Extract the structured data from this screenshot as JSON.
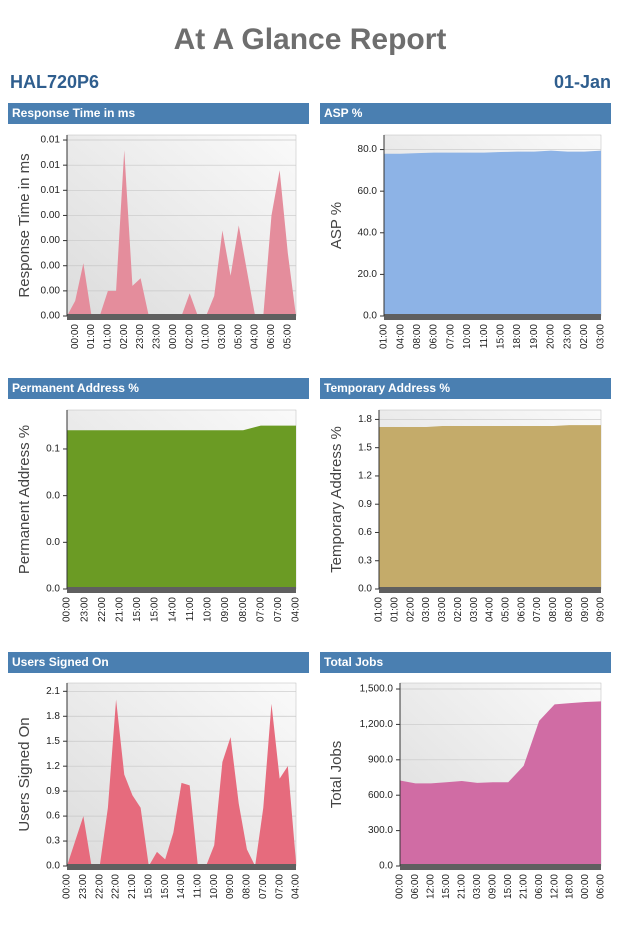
{
  "header": {
    "title": "At A Glance Report",
    "host": "HAL720P6",
    "date": "01-Jan"
  },
  "chart_data": [
    {
      "type": "area",
      "title": "Response Time in ms",
      "ylabel": "Response Time in ms",
      "color": "#e48d9c",
      "categories": [
        null,
        "00:00",
        null,
        "01:00",
        null,
        "01:00",
        null,
        "02:00",
        null,
        "23:00",
        null,
        "23:00",
        null,
        "00:00",
        null,
        "02:00",
        null,
        "01:00",
        null,
        "03:00",
        null,
        "05:00",
        null,
        "04:00",
        null,
        "06:00",
        null,
        "05:00",
        null
      ],
      "values": [
        0,
        0.0006,
        0.0021,
        0,
        0,
        0.001,
        0.001,
        0.0066,
        0.0012,
        0.0015,
        0,
        0,
        0,
        0,
        0,
        0.0009,
        0,
        0,
        0.0008,
        0.0034,
        0.0016,
        0.0036,
        0.0018,
        0,
        0,
        0.004,
        0.0058,
        0.0025,
        0
      ],
      "ylim": [
        0,
        0.0072
      ],
      "yticks": [
        {
          "value": 0,
          "label": "0.00"
        },
        {
          "value": 0.001,
          "label": "0.00"
        },
        {
          "value": 0.002,
          "label": "0.00"
        },
        {
          "value": 0.003,
          "label": "0.00"
        },
        {
          "value": 0.004,
          "label": "0.00"
        },
        {
          "value": 0.005,
          "label": "0.01"
        },
        {
          "value": 0.006,
          "label": "0.01"
        },
        {
          "value": 0.007,
          "label": "0.01"
        }
      ],
      "grid": true
    },
    {
      "type": "area",
      "title": "ASP %",
      "ylabel": "ASP %",
      "color": "#8db3e6",
      "categories": [
        "01:00",
        "04:00",
        "08:00",
        "06:00",
        "07:00",
        "10:00",
        "11:00",
        "15:00",
        "18:00",
        "19:00",
        "20:00",
        "23:00",
        "02:00",
        "03:00"
      ],
      "values": [
        78,
        78,
        78.3,
        78.5,
        78.5,
        78.5,
        78.5,
        78.8,
        79,
        79,
        79.5,
        79,
        79,
        79.5
      ],
      "ylim": [
        0,
        87
      ],
      "yticks": [
        {
          "value": 0,
          "label": "0.0"
        },
        {
          "value": 20,
          "label": "20.0"
        },
        {
          "value": 40,
          "label": "40.0"
        },
        {
          "value": 60,
          "label": "60.0"
        },
        {
          "value": 80,
          "label": "80.0"
        }
      ],
      "grid": true
    },
    {
      "type": "area",
      "title": "Permanent Address %",
      "ylabel": "Permanent Address %",
      "color": "#6b9b24",
      "categories": [
        "00:00",
        "23:00",
        "22:00",
        "21:00",
        "15:00",
        "15:00",
        "14:00",
        "11:00",
        "10:00",
        "09:00",
        "08:00",
        "07:00",
        "07:00",
        "04:00"
      ],
      "values": [
        0.068,
        0.068,
        0.068,
        0.068,
        0.068,
        0.068,
        0.068,
        0.068,
        0.068,
        0.068,
        0.068,
        0.07,
        0.07,
        0.07
      ],
      "ylim": [
        0,
        0.0767
      ],
      "yticks": [
        {
          "value": 0,
          "label": "0.0"
        },
        {
          "value": 0.02,
          "label": "0.0"
        },
        {
          "value": 0.04,
          "label": "0.0"
        },
        {
          "value": 0.06,
          "label": "0.1"
        }
      ],
      "grid": true
    },
    {
      "type": "area",
      "title": "Temporary Address %",
      "ylabel": "Temporary Address %",
      "color": "#c4ab6a",
      "categories": [
        "01:00",
        "01:00",
        "02:00",
        "03:00",
        "03:00",
        "02:00",
        "03:00",
        "04:00",
        "05:00",
        "06:00",
        "07:00",
        "08:00",
        "08:00",
        "09:00",
        "09:00"
      ],
      "values": [
        1.72,
        1.72,
        1.72,
        1.72,
        1.73,
        1.73,
        1.73,
        1.73,
        1.73,
        1.73,
        1.73,
        1.73,
        1.74,
        1.74,
        1.74
      ],
      "ylim": [
        0,
        1.9
      ],
      "yticks": [
        {
          "value": 0,
          "label": "0.0"
        },
        {
          "value": 0.3,
          "label": "0.3"
        },
        {
          "value": 0.6,
          "label": "0.6"
        },
        {
          "value": 0.9,
          "label": "0.9"
        },
        {
          "value": 1.2,
          "label": "1.2"
        },
        {
          "value": 1.5,
          "label": "1.5"
        },
        {
          "value": 1.8,
          "label": "1.8"
        }
      ],
      "grid": true
    },
    {
      "type": "area",
      "title": "Users Signed On",
      "ylabel": "Users Signed On",
      "color": "#e66b7d",
      "categories": [
        "00:00",
        null,
        "23:00",
        null,
        "22:00",
        null,
        "22:00",
        null,
        "21:00",
        null,
        "15:00",
        null,
        "15:00",
        null,
        "14:00",
        null,
        "11:00",
        null,
        "10:00",
        null,
        "09:00",
        null,
        "08:00",
        null,
        "07:00",
        null,
        "07:00",
        null,
        "04:00"
      ],
      "values": [
        0,
        0.3,
        0.6,
        0,
        0,
        0.7,
        2.0,
        1.1,
        0.85,
        0.7,
        0,
        0.17,
        0.08,
        0.4,
        1.0,
        0.97,
        0,
        0,
        0.25,
        1.25,
        1.55,
        0.75,
        0.2,
        0,
        0.7,
        1.95,
        1.05,
        1.2,
        0.05
      ],
      "ylim": [
        0,
        2.2
      ],
      "yticks": [
        {
          "value": 0,
          "label": "0.0"
        },
        {
          "value": 0.3,
          "label": "0.3"
        },
        {
          "value": 0.6,
          "label": "0.6"
        },
        {
          "value": 0.9,
          "label": "0.9"
        },
        {
          "value": 1.2,
          "label": "1.2"
        },
        {
          "value": 1.5,
          "label": "1.5"
        },
        {
          "value": 1.8,
          "label": "1.8"
        },
        {
          "value": 2.1,
          "label": "2.1"
        }
      ],
      "grid": true
    },
    {
      "type": "area",
      "title": "Total Jobs",
      "ylabel": "Total Jobs",
      "color": "#d06ca4",
      "categories": [
        "00:00",
        "06:00",
        "12:00",
        "15:00",
        "21:00",
        "03:00",
        "09:00",
        "15:00",
        "21:00",
        "06:00",
        "12:00",
        "18:00",
        "00:00",
        "06:00"
      ],
      "values": [
        725,
        700,
        700,
        710,
        720,
        705,
        710,
        710,
        850,
        1230,
        1370,
        1380,
        1390,
        1395
      ],
      "ylim": [
        0,
        1551
      ],
      "yticks": [
        {
          "value": 0,
          "label": "0.0"
        },
        {
          "value": 300,
          "label": "300.0"
        },
        {
          "value": 600,
          "label": "600.0"
        },
        {
          "value": 900,
          "label": "900.0"
        },
        {
          "value": 1200,
          "label": "1,200.0"
        },
        {
          "value": 1500,
          "label": "1,500.0"
        }
      ],
      "grid": true
    }
  ]
}
